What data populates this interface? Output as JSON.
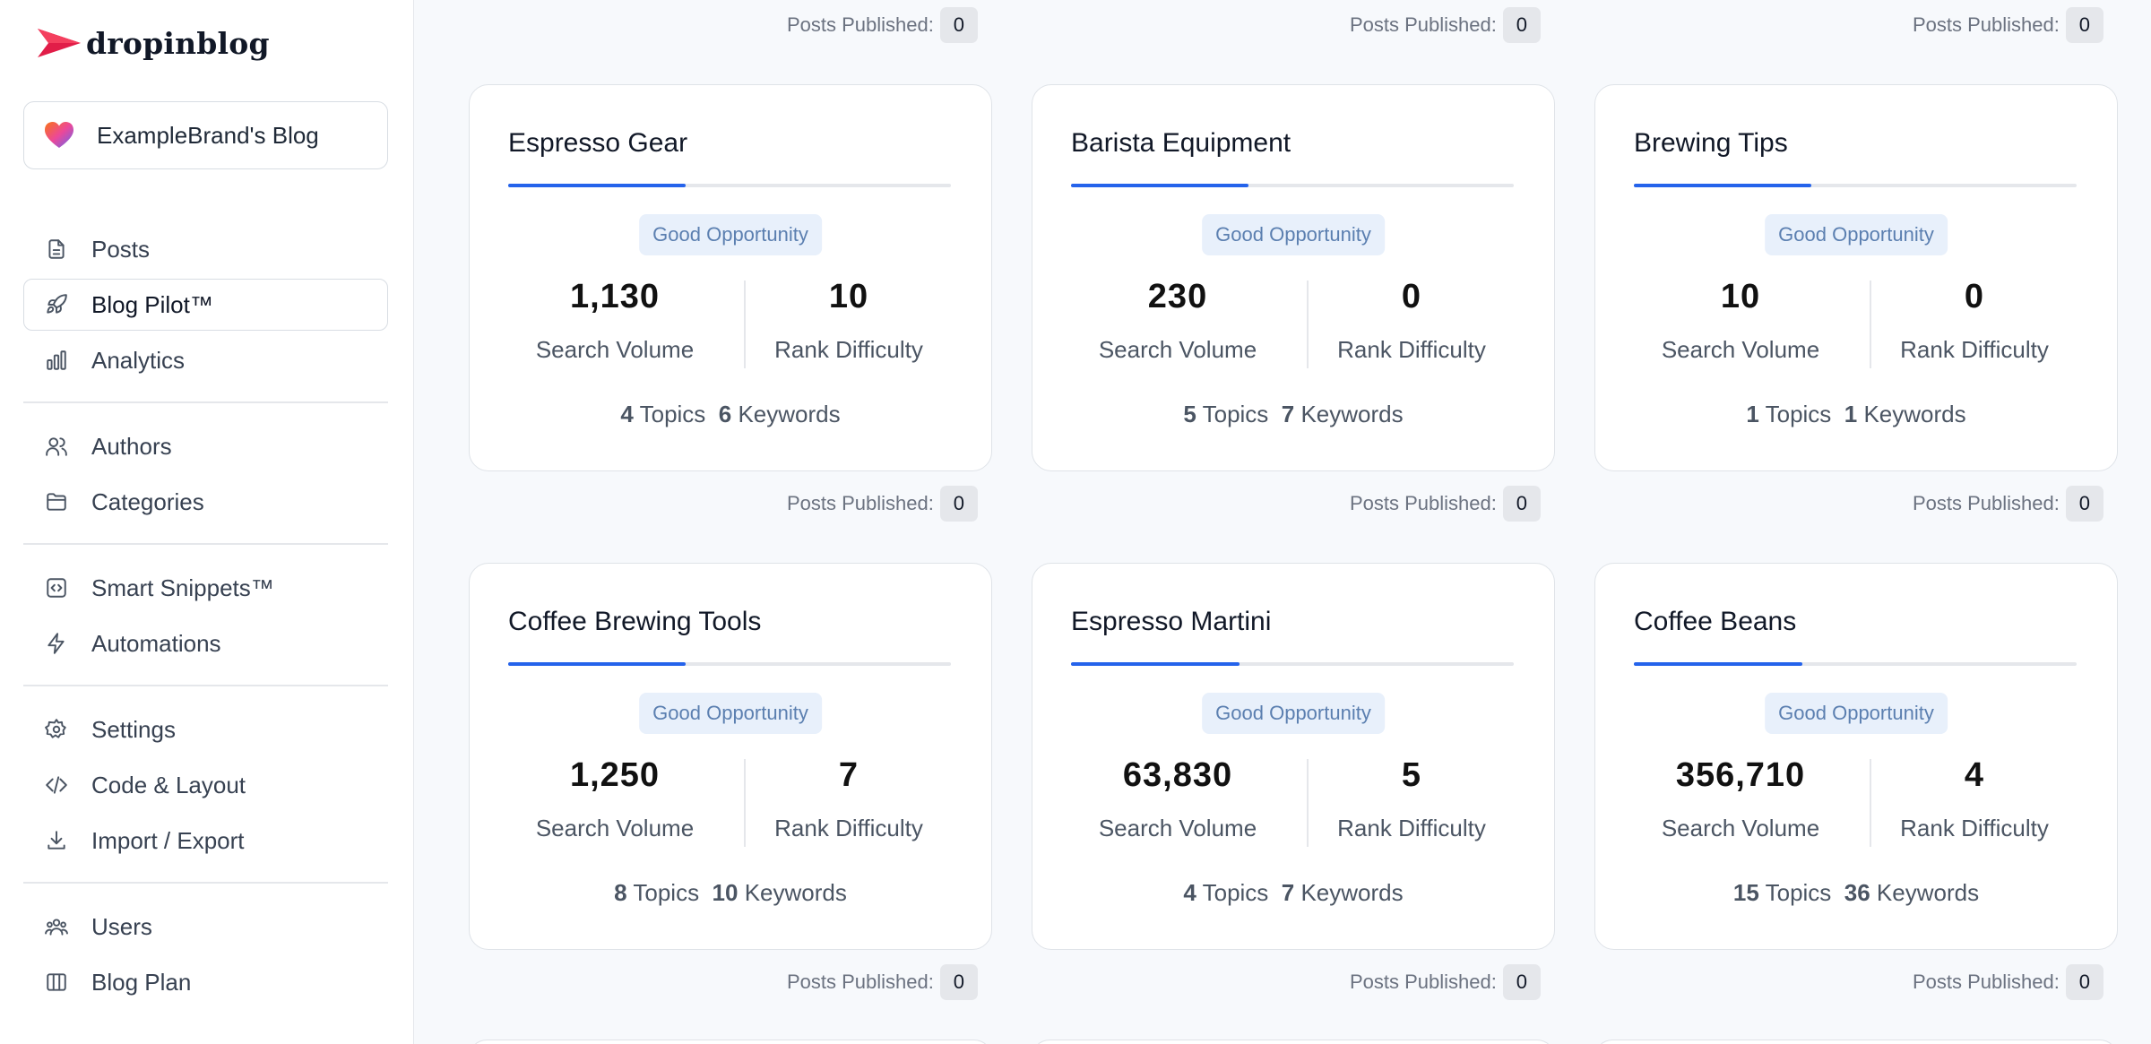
{
  "brand": {
    "name": "dropinblog",
    "accent": "#e11d48"
  },
  "blog_selector": {
    "label": "ExampleBrand's Blog"
  },
  "nav": {
    "groups": [
      [
        {
          "label": "Posts",
          "icon": "document-icon"
        },
        {
          "label": "Blog Pilot™",
          "icon": "rocket-icon",
          "active": true
        },
        {
          "label": "Analytics",
          "icon": "bar-chart-icon"
        }
      ],
      [
        {
          "label": "Authors",
          "icon": "users-icon"
        },
        {
          "label": "Categories",
          "icon": "folder-icon"
        }
      ],
      [
        {
          "label": "Smart Snippets™",
          "icon": "code-box-icon"
        },
        {
          "label": "Automations",
          "icon": "lightning-icon"
        }
      ],
      [
        {
          "label": "Settings",
          "icon": "gear-icon"
        },
        {
          "label": "Code & Layout",
          "icon": "code-icon"
        },
        {
          "label": "Import / Export",
          "icon": "download-icon"
        }
      ],
      [
        {
          "label": "Users",
          "icon": "user-group-icon"
        },
        {
          "label": "Blog Plan",
          "icon": "columns-icon"
        }
      ]
    ]
  },
  "posts_published_label": "Posts Published:",
  "top_posts_published": [
    "0",
    "0",
    "0"
  ],
  "cards": [
    {
      "title": "Espresso Gear",
      "badge": "Good Opportunity",
      "search_volume": "1,130",
      "search_volume_label": "Search Volume",
      "rank_difficulty": "10",
      "rank_difficulty_label": "Rank Difficulty",
      "topics": "4",
      "topics_label": "Topics",
      "keywords": "6",
      "keywords_label": "Keywords",
      "posts_published": "0",
      "progress": 0.4
    },
    {
      "title": "Barista Equipment",
      "badge": "Good Opportunity",
      "search_volume": "230",
      "search_volume_label": "Search Volume",
      "rank_difficulty": "0",
      "rank_difficulty_label": "Rank Difficulty",
      "topics": "5",
      "topics_label": "Topics",
      "keywords": "7",
      "keywords_label": "Keywords",
      "posts_published": "0",
      "progress": 0.4
    },
    {
      "title": "Brewing Tips",
      "badge": "Good Opportunity",
      "search_volume": "10",
      "search_volume_label": "Search Volume",
      "rank_difficulty": "0",
      "rank_difficulty_label": "Rank Difficulty",
      "topics": "1",
      "topics_label": "Topics",
      "keywords": "1",
      "keywords_label": "Keywords",
      "posts_published": "0",
      "progress": 0.4
    },
    {
      "title": "Coffee Brewing Tools",
      "badge": "Good Opportunity",
      "search_volume": "1,250",
      "search_volume_label": "Search Volume",
      "rank_difficulty": "7",
      "rank_difficulty_label": "Rank Difficulty",
      "topics": "8",
      "topics_label": "Topics",
      "keywords": "10",
      "keywords_label": "Keywords",
      "posts_published": "0",
      "progress": 0.4
    },
    {
      "title": "Espresso Martini",
      "badge": "Good Opportunity",
      "search_volume": "63,830",
      "search_volume_label": "Search Volume",
      "rank_difficulty": "5",
      "rank_difficulty_label": "Rank Difficulty",
      "topics": "4",
      "topics_label": "Topics",
      "keywords": "7",
      "keywords_label": "Keywords",
      "posts_published": "0",
      "progress": 0.38
    },
    {
      "title": "Coffee Beans",
      "badge": "Good Opportunity",
      "search_volume": "356,710",
      "search_volume_label": "Search Volume",
      "rank_difficulty": "4",
      "rank_difficulty_label": "Rank Difficulty",
      "topics": "15",
      "topics_label": "Topics",
      "keywords": "36",
      "keywords_label": "Keywords",
      "posts_published": "0",
      "progress": 0.38
    }
  ]
}
